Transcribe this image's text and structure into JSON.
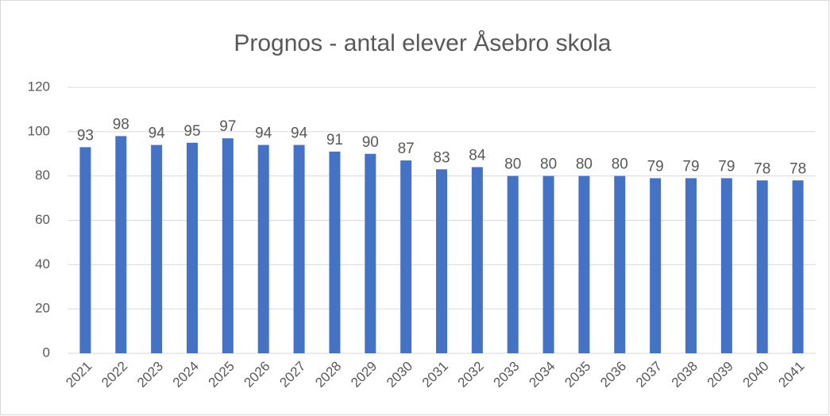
{
  "chart_data": {
    "type": "bar",
    "title": "Prognos - antal elever Åsebro skola",
    "categories": [
      "2021",
      "2022",
      "2023",
      "2024",
      "2025",
      "2026",
      "2027",
      "2028",
      "2029",
      "2030",
      "2031",
      "2032",
      "2033",
      "2034",
      "2035",
      "2036",
      "2037",
      "2038",
      "2039",
      "2040",
      "2041"
    ],
    "values": [
      93,
      98,
      94,
      95,
      97,
      94,
      94,
      91,
      90,
      87,
      83,
      84,
      80,
      80,
      80,
      80,
      79,
      79,
      79,
      78,
      78
    ],
    "color": "#4472c4",
    "ylim": [
      0,
      120
    ],
    "yticks": [
      0,
      20,
      40,
      60,
      80,
      100,
      120
    ],
    "grid": true
  }
}
